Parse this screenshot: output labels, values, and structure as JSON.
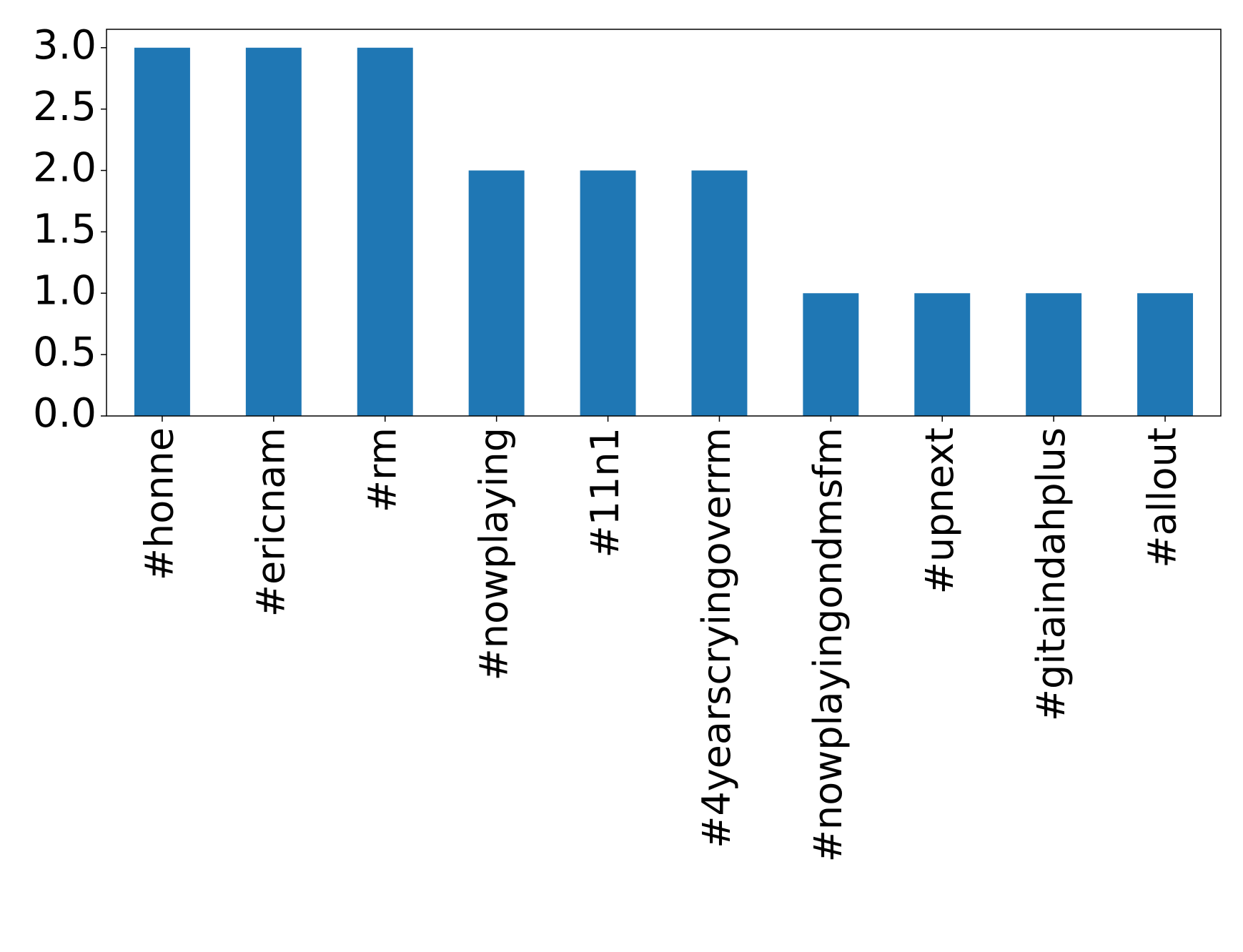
{
  "chart_data": {
    "type": "bar",
    "categories": [
      "#honne",
      "#ericnam",
      "#rm",
      "#nowplaying",
      "#11n1",
      "#4yearscryingoverrm",
      "#nowplayingondmsfm",
      "#upnext",
      "#gitaindahplus",
      "#allout"
    ],
    "values": [
      3,
      3,
      3,
      2,
      2,
      2,
      1,
      1,
      1,
      1
    ],
    "color": "#1f77b4",
    "ylim": [
      0,
      3.15
    ],
    "yticks": [
      {
        "value": 0,
        "label": "0.0"
      },
      0.5,
      {
        "value": 1,
        "label": "1.0"
      },
      1.5,
      {
        "value": 2,
        "label": "2.0"
      },
      2.5,
      {
        "value": 3,
        "label": "3.0"
      }
    ],
    "grid": false
  }
}
